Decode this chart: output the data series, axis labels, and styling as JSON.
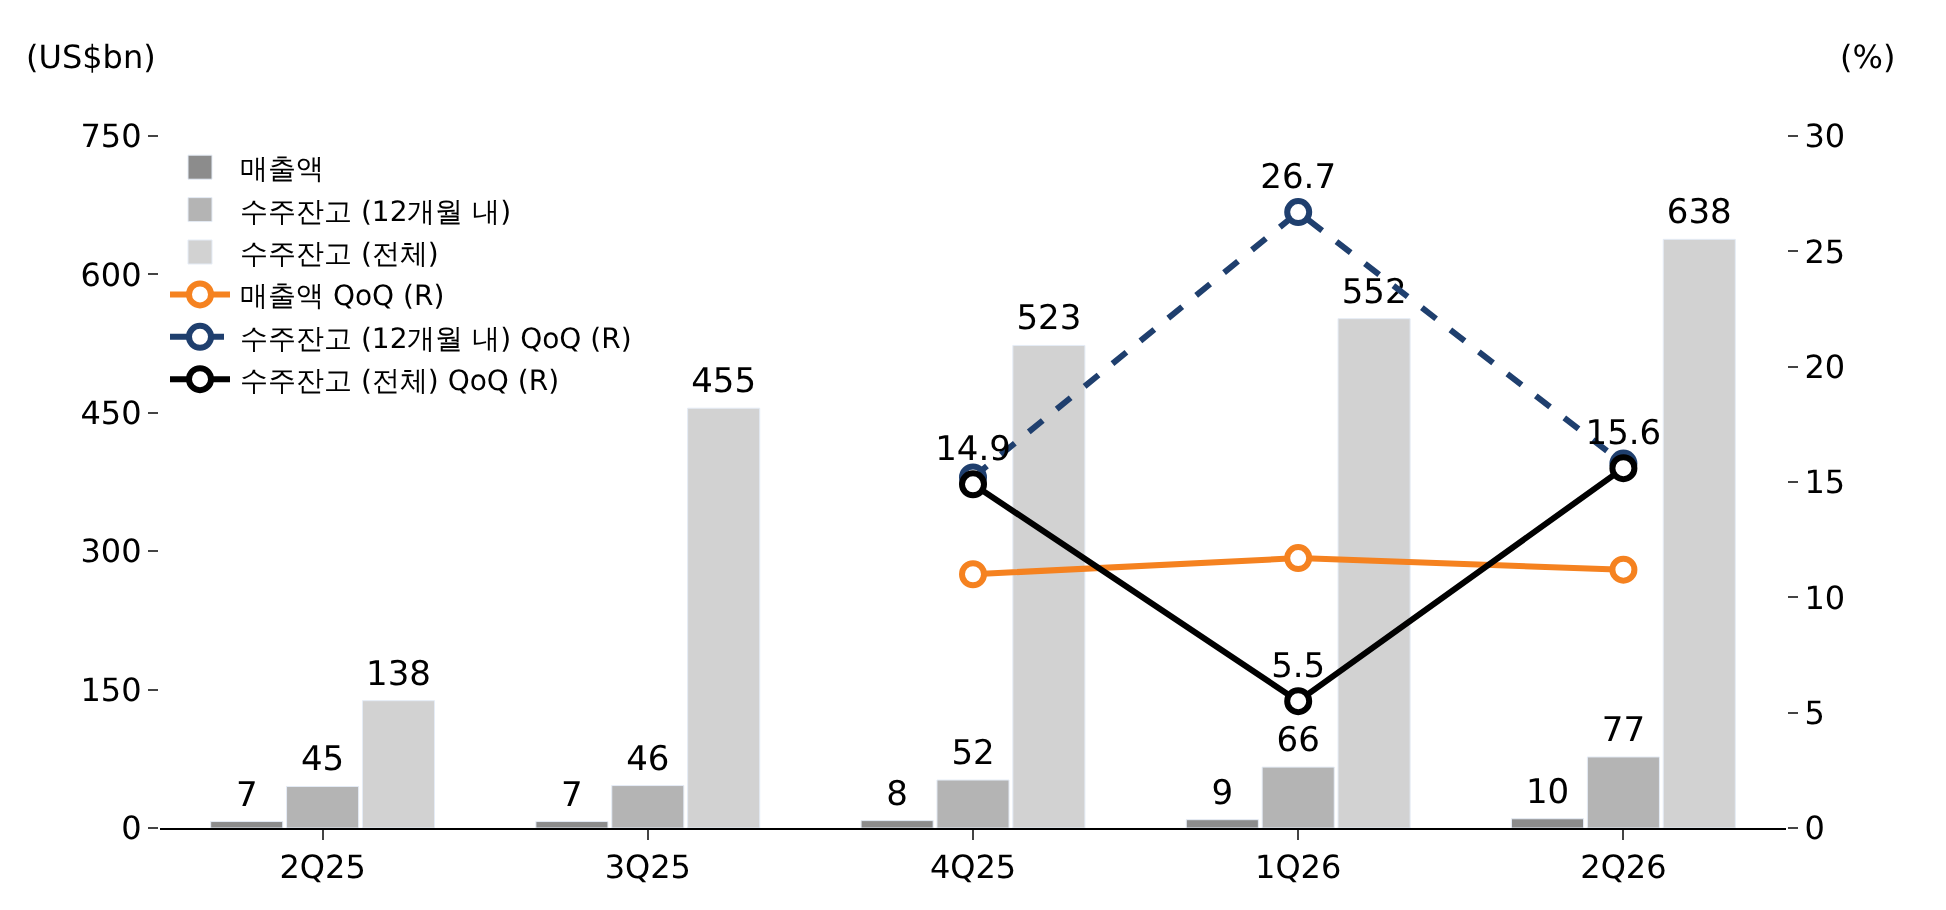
{
  "chart_data": {
    "type": "bar",
    "ylabel": "(US$bn)",
    "y2label": "(%)",
    "categories": [
      "2Q25",
      "3Q25",
      "4Q25",
      "1Q26",
      "2Q26"
    ],
    "ylim": [
      0,
      750
    ],
    "yticks": [
      0,
      150,
      300,
      450,
      600,
      750
    ],
    "y2lim": [
      0,
      30
    ],
    "y2ticks": [
      0,
      5,
      10,
      15,
      20,
      25,
      30
    ],
    "legend": "top left",
    "series": [
      {
        "name": "매출액",
        "color": "#8c8c8c",
        "values": [
          7,
          7,
          8,
          9,
          10
        ],
        "value_labels": [
          "7",
          "7",
          "8",
          "9",
          "10"
        ]
      },
      {
        "name": "수주잔고 (12개월 내)",
        "color": "#b4b4b4",
        "values": [
          45,
          46,
          52,
          66,
          77
        ],
        "value_labels": [
          "45",
          "46",
          "52",
          "66",
          "77"
        ]
      },
      {
        "name": "수주잔고 (전체)",
        "color": "#d2d2d2",
        "values": [
          138,
          455,
          523,
          552,
          638
        ],
        "value_labels": [
          "138",
          "455",
          "523",
          "552",
          "638"
        ]
      },
      {
        "name": "매출액 QoQ (R)",
        "type": "line",
        "axis": "y2",
        "color": "#f58220",
        "marker": "circle",
        "line_style": "solid",
        "values": [
          null,
          null,
          11.0,
          11.7,
          11.2
        ]
      },
      {
        "name": "수주잔고 (12개월 내) QoQ (R)",
        "type": "line",
        "axis": "y2",
        "color": "#1f3f6e",
        "marker": "circle",
        "line_style": "dashed",
        "values": [
          null,
          null,
          15.2,
          26.7,
          15.8
        ],
        "value_labels": [
          null,
          null,
          null,
          "26.7",
          null
        ]
      },
      {
        "name": "수주잔고 (전체) QoQ (R)",
        "type": "line",
        "axis": "y2",
        "color": "#000000",
        "marker": "circle",
        "line_style": "solid",
        "values": [
          null,
          null,
          14.9,
          5.5,
          15.6
        ],
        "value_labels": [
          null,
          null,
          "14.9",
          "5.5",
          "15.6"
        ]
      }
    ]
  }
}
